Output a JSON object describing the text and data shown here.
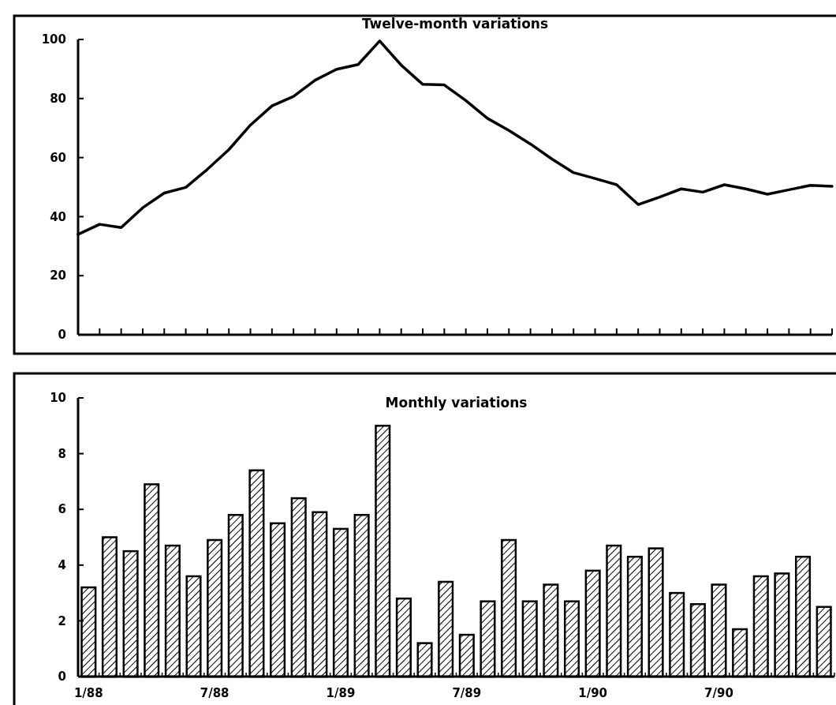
{
  "chart_data": [
    {
      "type": "line",
      "title": "Twelve-month variations",
      "categories": [
        null,
        null,
        null,
        null,
        null,
        null,
        null,
        null,
        null,
        null,
        null,
        null,
        null,
        null,
        null,
        null,
        null,
        null,
        null,
        null,
        null,
        null,
        null,
        null,
        null,
        null,
        null,
        null,
        null,
        null,
        null,
        null,
        null,
        null,
        null,
        null
      ],
      "series": [
        {
          "color": "#000000",
          "values": [
            34,
            37.4,
            36.3,
            43,
            48,
            49.9,
            56,
            62.7,
            71,
            77.5,
            80.7,
            86.2,
            89.9,
            91.5,
            99.5,
            91.3,
            84.8,
            84.6,
            79.3,
            73.3,
            69.2,
            64.6,
            59.5,
            54.9,
            52.9,
            50.8,
            44.1,
            46.6,
            49.4,
            48.3,
            50.8,
            49.4,
            47.6,
            49.1,
            50.6,
            50.3
          ]
        }
      ],
      "ylim": [
        0,
        100
      ],
      "yticks": [
        0,
        20,
        40,
        60,
        80,
        100
      ],
      "tick_labels": "y"
    },
    {
      "type": "bar",
      "title": "Monthly variations",
      "categories": [
        "1/88",
        null,
        null,
        null,
        null,
        null,
        "7/88",
        null,
        null,
        null,
        null,
        null,
        "1/89",
        null,
        null,
        null,
        null,
        null,
        "7/89",
        null,
        null,
        null,
        null,
        null,
        "1/90",
        null,
        null,
        null,
        null,
        null,
        "7/90",
        null,
        null,
        null,
        null,
        null
      ],
      "series": [
        {
          "color": "#000000",
          "values": [
            3.2,
            5,
            4.5,
            6.9,
            4.7,
            3.6,
            4.9,
            5.8,
            7.4,
            5.5,
            6.4,
            5.9,
            5.3,
            5.8,
            9,
            2.8,
            1.2,
            3.4,
            1.5,
            2.7,
            4.9,
            2.7,
            3.3,
            2.7,
            3.8,
            4.7,
            4.3,
            4.6,
            3,
            2.6,
            3.3,
            1.7,
            3.6,
            3.7,
            4.3,
            2.5
          ]
        }
      ],
      "ylim": [
        0,
        10
      ],
      "yticks": [
        0,
        2,
        4,
        6,
        8,
        10
      ]
    }
  ]
}
